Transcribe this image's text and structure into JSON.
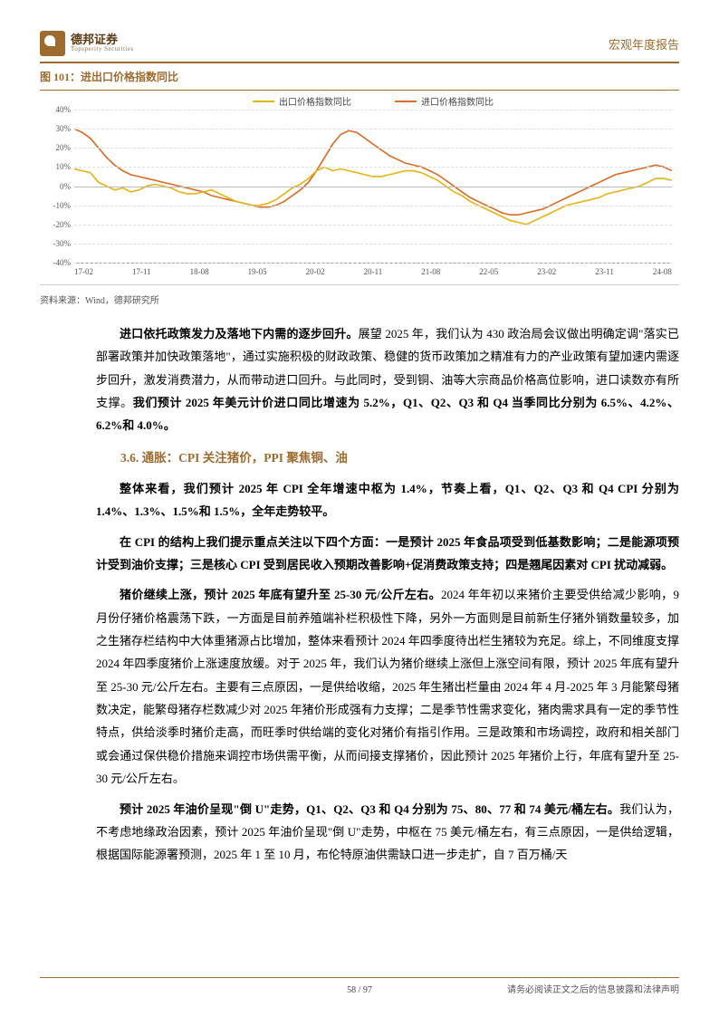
{
  "header": {
    "brand_cn": "德邦证券",
    "brand_en": "Topsperity Securities",
    "doc_type": "宏观年度报告"
  },
  "figure": {
    "title": "图 101：进出口价格指数同比",
    "legend": {
      "s1": {
        "label": "出口价格指数同比",
        "color": "#e7b416"
      },
      "s2": {
        "label": "进口价格指数同比",
        "color": "#d96d2a"
      }
    },
    "y": {
      "min": -40,
      "max": 40,
      "step": 10,
      "unit": "%"
    },
    "x_ticks": [
      "17-02",
      "17-11",
      "18-08",
      "19-05",
      "20-02",
      "20-11",
      "21-08",
      "22-05",
      "23-02",
      "23-11",
      "24-08"
    ],
    "grid_color": "#dddddd",
    "zero_color": "#bbbbbb",
    "bg": "#ffffff",
    "series1": [
      9,
      8,
      7,
      2,
      0,
      -2,
      -1,
      -3,
      -2,
      0,
      1,
      0,
      -1,
      -3,
      -4,
      -4,
      -3,
      -2,
      -4,
      -6,
      -8,
      -9,
      -10,
      -10,
      -9,
      -7,
      -4,
      -1,
      1,
      4,
      8,
      10,
      8,
      9,
      8,
      7,
      6,
      5,
      5,
      6,
      7,
      8,
      8,
      7,
      5,
      3,
      0,
      -3,
      -5,
      -8,
      -10,
      -12,
      -14,
      -16,
      -18,
      -19,
      -20,
      -18,
      -16,
      -14,
      -12,
      -10,
      -9,
      -8,
      -7,
      -6,
      -4,
      -3,
      -2,
      -1,
      0,
      2,
      4,
      4,
      3
    ],
    "series2": [
      30,
      28,
      25,
      20,
      15,
      11,
      8,
      6,
      5,
      4,
      3,
      2,
      1,
      0,
      -1,
      -2,
      -3,
      -5,
      -6,
      -7,
      -8,
      -9,
      -10,
      -11,
      -11,
      -10,
      -8,
      -5,
      -2,
      2,
      8,
      15,
      22,
      27,
      29,
      28,
      25,
      22,
      19,
      16,
      14,
      12,
      11,
      10,
      8,
      6,
      3,
      0,
      -3,
      -6,
      -8,
      -10,
      -12,
      -14,
      -15,
      -15,
      -14,
      -13,
      -12,
      -10,
      -8,
      -6,
      -4,
      -2,
      0,
      2,
      4,
      6,
      7,
      8,
      9,
      10,
      11,
      10,
      8
    ]
  },
  "source": "资料来源：Wind，德邦研究所",
  "paragraphs": {
    "p1_lead": "进口依托政策发力及落地下内需的逐步回升。",
    "p1_rest": "展望 2025 年，我们认为 430 政治局会议做出明确定调\"落实已部署政策并加快政策落地\"，通过实施积极的财政政策、稳健的货币政策加之精准有力的产业政策有望加速内需逐步回升，激发消费潜力，从而带动进口回升。与此同时，受到铜、油等大宗商品价格高位影响，进口读数亦有所支撑。",
    "p1_bold_tail": "我们预计 2025 年美元计价进口同比增速为 5.2%，Q1、Q2、Q3 和 Q4 当季同比分别为 6.5%、4.2%、6.2%和 4.0%。",
    "sec": "3.6. 通胀：CPI 关注猪价，PPI 聚焦铜、油",
    "p2": "整体来看，我们预计 2025 年 CPI 全年增速中枢为 1.4%，节奏上看，Q1、Q2、Q3 和 Q4 CPI 分别为 1.4%、1.3%、1.5%和 1.5%，全年走势较平。",
    "p3": "在 CPI 的结构上我们提示重点关注以下四个方面：一是预计 2025 年食品项受到低基数影响；二是能源项预计受到油价支撑；三是核心 CPI 受到居民收入预期改善影响+促消费政策支持；四是翘尾因素对 CPI 扰动减弱。",
    "p4_lead": "猪价继续上涨，预计 2025 年底有望升至 25-30 元/公斤左右。",
    "p4_rest": "2024 年年初以来猪价主要受供给减少影响，9 月份仔猪价格震荡下跌，一方面是目前养殖端补栏积极性下降，另外一方面则是目前新生仔猪外销数量较多，加之生猪存栏结构中大体重猪源占比增加，整体来看预计 2024 年四季度待出栏生猪较为充足。综上，不同维度支撑 2024 年四季度猪价上涨速度放缓。对于 2025 年，我们认为猪价继续上涨但上涨空间有限，预计 2025 年底有望升至 25-30 元/公斤左右。主要有三点原因，一是供给收缩，2025 年生猪出栏量由 2024 年 4 月-2025 年 3 月能繁母猪数决定，能繁母猪存栏数减少对 2025 年猪价形成强有力支撑；二是季节性需求变化，猪肉需求具有一定的季节性特点，供给淡季时猪价走高，而旺季时供给端的变化对猪价有指引作用。三是政策和市场调控，政府和相关部门或会通过保供稳价措施来调控市场供需平衡，从而间接支撑猪价，因此预计 2025 年猪价上行，年底有望升至 25-30 元/公斤左右。",
    "p5_lead": "预计 2025 年油价呈现\"倒 U\"走势，Q1、Q2、Q3 和 Q4 分别为 75、80、77 和 74 美元/桶左右。",
    "p5_rest": "我们认为，不考虑地缘政治因素，预计 2025 年油价呈现\"倒 U\"走势，中枢在 75 美元/桶左右，有三点原因，一是供给逻辑，根据国际能源署预测，2025 年 1 至 10 月，布伦特原油供需缺口进一步走扩，自 7 百万桶/天"
  },
  "footer": {
    "page": "58 / 97",
    "disclaimer": "请务必阅读正文之后的信息披露和法律声明"
  }
}
